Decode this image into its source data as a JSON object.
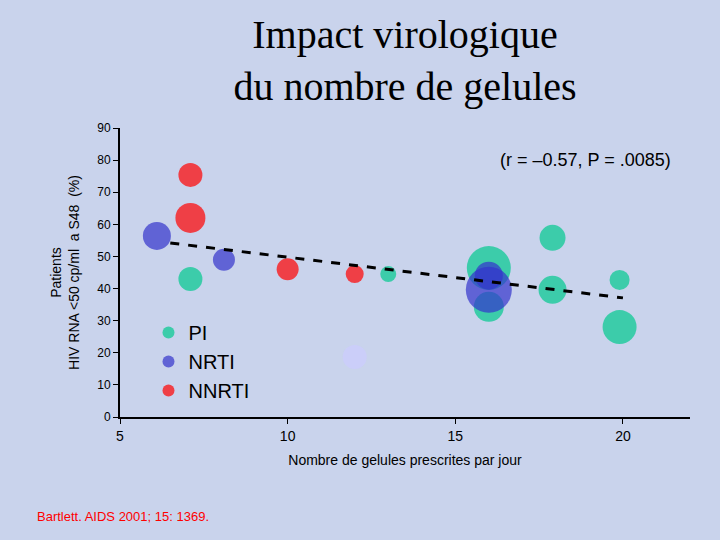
{
  "chart_data": {
    "type": "scatter",
    "title": [
      "Impact virologique",
      "du nombre de gelules"
    ],
    "x_label": "Nombre de gelules prescrites par jour",
    "y_label": [
      "Patients",
      "HIV RNA <50 cp/ml  a S48  (%)"
    ],
    "annotations": [
      "(r = –0.57, P = .0085)"
    ],
    "source": "Bartlett. AIDS 2001; 15: 1369.",
    "xlim": [
      5,
      22
    ],
    "xticks": [
      5,
      10,
      15,
      20
    ],
    "ylim": [
      0,
      90
    ],
    "yticks": [
      0,
      10,
      20,
      30,
      40,
      50,
      60,
      70,
      80,
      90
    ],
    "grid": false,
    "legend": "lower left",
    "marker": "circle",
    "series": [
      {
        "name": "PI",
        "color": "#00c98f",
        "x": [
          7.1,
          13,
          16,
          16,
          17.9,
          17.9,
          19.9,
          19.9
        ],
        "values": [
          43,
          44.5,
          46.4,
          34.3,
          55.8,
          39.6,
          42.7,
          28
        ],
        "sizes": [
          24,
          16,
          44,
          30,
          26,
          28,
          20,
          34
        ]
      },
      {
        "name": "NRTI",
        "color": "#3333cc",
        "colors": [
          "#3333cc",
          "#3333cc",
          "#3333cc",
          "#3333cc",
          "#ccccff"
        ],
        "x": [
          6.1,
          8.1,
          16,
          16,
          12
        ],
        "values": [
          56.4,
          49,
          39.6,
          44,
          18.7
        ],
        "sizes": [
          28,
          22,
          46,
          28,
          24
        ]
      },
      {
        "name": "NNRTI",
        "color": "#ff0000",
        "x": [
          7.1,
          7.1,
          10,
          12
        ],
        "values": [
          75.4,
          62,
          46,
          44.5
        ],
        "sizes": [
          24,
          30,
          22,
          18
        ]
      },
      {
        "type": "line",
        "line_style": "dashed",
        "color": "#000000",
        "x": [
          6.5,
          20
        ],
        "values": [
          54.2,
          37.1
        ]
      }
    ]
  }
}
